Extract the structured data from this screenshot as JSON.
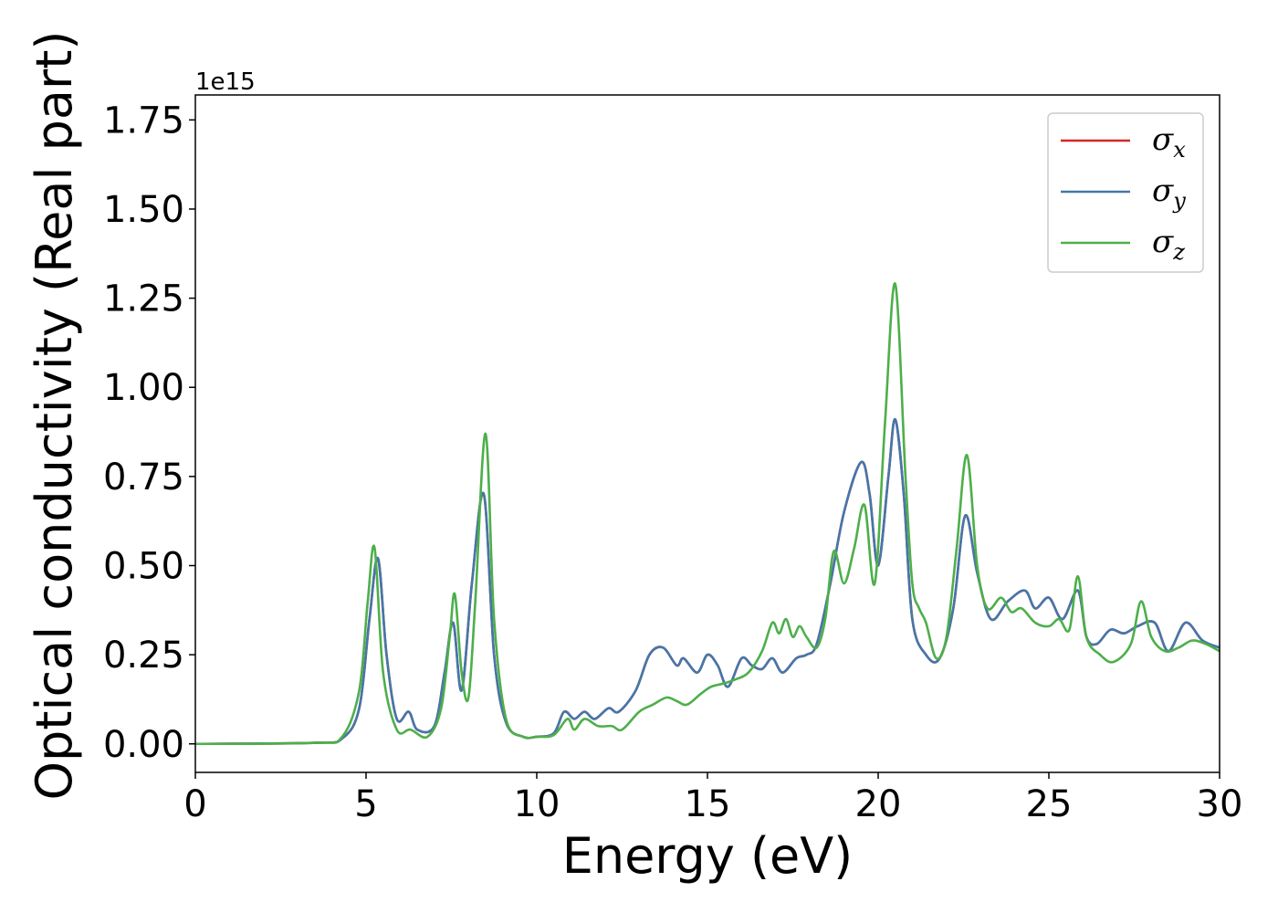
{
  "chart_data": {
    "type": "line",
    "xlabel": "Energy (eV)",
    "ylabel": "Optical conductivity (Real part)",
    "y_offset_label": "1e15",
    "xlim": [
      0,
      30
    ],
    "ylim": [
      -0.08,
      1.82
    ],
    "x_ticks": [
      0,
      5,
      10,
      15,
      20,
      25,
      30
    ],
    "x_tick_labels": [
      "0",
      "5",
      "10",
      "15",
      "20",
      "25",
      "30"
    ],
    "y_ticks": [
      0,
      0.25,
      0.5,
      0.75,
      1.0,
      1.25,
      1.5,
      1.75
    ],
    "y_tick_labels": [
      "0.00",
      "0.25",
      "0.50",
      "0.75",
      "1.00",
      "1.25",
      "1.50",
      "1.75"
    ],
    "grid": false,
    "legend_position": "top-right",
    "colors": {
      "sigma_x": "#d62728",
      "sigma_y": "#4477aa",
      "sigma_z": "#4daf4a"
    },
    "series": [
      {
        "name": "σx",
        "symbol": "σ",
        "subscript": "x",
        "color": "#d62728",
        "points": [
          [
            0,
            0
          ],
          [
            3.5,
            0.003
          ],
          [
            4.3,
            0.015
          ],
          [
            4.8,
            0.1
          ],
          [
            5.1,
            0.35
          ],
          [
            5.35,
            0.52
          ],
          [
            5.6,
            0.25
          ],
          [
            5.9,
            0.07
          ],
          [
            6.25,
            0.09
          ],
          [
            6.5,
            0.04
          ],
          [
            7.0,
            0.05
          ],
          [
            7.3,
            0.2
          ],
          [
            7.55,
            0.34
          ],
          [
            7.8,
            0.15
          ],
          [
            8.1,
            0.45
          ],
          [
            8.45,
            0.7
          ],
          [
            8.75,
            0.25
          ],
          [
            9.1,
            0.06
          ],
          [
            9.6,
            0.02
          ],
          [
            10.0,
            0.02
          ],
          [
            10.5,
            0.03
          ],
          [
            10.8,
            0.09
          ],
          [
            11.1,
            0.07
          ],
          [
            11.4,
            0.09
          ],
          [
            11.7,
            0.07
          ],
          [
            12.1,
            0.1
          ],
          [
            12.4,
            0.09
          ],
          [
            12.9,
            0.15
          ],
          [
            13.3,
            0.25
          ],
          [
            13.7,
            0.27
          ],
          [
            14.1,
            0.22
          ],
          [
            14.3,
            0.24
          ],
          [
            14.7,
            0.2
          ],
          [
            15.0,
            0.25
          ],
          [
            15.3,
            0.22
          ],
          [
            15.6,
            0.16
          ],
          [
            16.0,
            0.24
          ],
          [
            16.3,
            0.22
          ],
          [
            16.6,
            0.21
          ],
          [
            16.9,
            0.24
          ],
          [
            17.2,
            0.2
          ],
          [
            17.6,
            0.24
          ],
          [
            17.9,
            0.25
          ],
          [
            18.2,
            0.28
          ],
          [
            18.6,
            0.45
          ],
          [
            19.0,
            0.65
          ],
          [
            19.5,
            0.79
          ],
          [
            19.75,
            0.7
          ],
          [
            20.0,
            0.5
          ],
          [
            20.3,
            0.75
          ],
          [
            20.5,
            0.91
          ],
          [
            20.75,
            0.7
          ],
          [
            21.0,
            0.35
          ],
          [
            21.4,
            0.25
          ],
          [
            21.8,
            0.24
          ],
          [
            22.2,
            0.38
          ],
          [
            22.55,
            0.64
          ],
          [
            22.9,
            0.48
          ],
          [
            23.3,
            0.35
          ],
          [
            23.8,
            0.4
          ],
          [
            24.3,
            0.43
          ],
          [
            24.6,
            0.38
          ],
          [
            25.0,
            0.41
          ],
          [
            25.4,
            0.35
          ],
          [
            25.85,
            0.43
          ],
          [
            26.1,
            0.3
          ],
          [
            26.4,
            0.28
          ],
          [
            26.8,
            0.32
          ],
          [
            27.2,
            0.31
          ],
          [
            27.6,
            0.33
          ],
          [
            28.1,
            0.34
          ],
          [
            28.5,
            0.26
          ],
          [
            29.0,
            0.34
          ],
          [
            29.5,
            0.29
          ],
          [
            30.0,
            0.27
          ]
        ]
      },
      {
        "name": "σy",
        "symbol": "σ",
        "subscript": "y",
        "color": "#4477aa",
        "points": [
          [
            0,
            0
          ],
          [
            3.5,
            0.003
          ],
          [
            4.3,
            0.015
          ],
          [
            4.8,
            0.1
          ],
          [
            5.1,
            0.35
          ],
          [
            5.35,
            0.52
          ],
          [
            5.6,
            0.25
          ],
          [
            5.9,
            0.07
          ],
          [
            6.25,
            0.09
          ],
          [
            6.5,
            0.04
          ],
          [
            7.0,
            0.05
          ],
          [
            7.3,
            0.2
          ],
          [
            7.55,
            0.34
          ],
          [
            7.8,
            0.15
          ],
          [
            8.1,
            0.45
          ],
          [
            8.45,
            0.7
          ],
          [
            8.75,
            0.25
          ],
          [
            9.1,
            0.06
          ],
          [
            9.6,
            0.02
          ],
          [
            10.0,
            0.02
          ],
          [
            10.5,
            0.03
          ],
          [
            10.8,
            0.09
          ],
          [
            11.1,
            0.07
          ],
          [
            11.4,
            0.09
          ],
          [
            11.7,
            0.07
          ],
          [
            12.1,
            0.1
          ],
          [
            12.4,
            0.09
          ],
          [
            12.9,
            0.15
          ],
          [
            13.3,
            0.25
          ],
          [
            13.7,
            0.27
          ],
          [
            14.1,
            0.22
          ],
          [
            14.3,
            0.24
          ],
          [
            14.7,
            0.2
          ],
          [
            15.0,
            0.25
          ],
          [
            15.3,
            0.22
          ],
          [
            15.6,
            0.16
          ],
          [
            16.0,
            0.24
          ],
          [
            16.3,
            0.22
          ],
          [
            16.6,
            0.21
          ],
          [
            16.9,
            0.24
          ],
          [
            17.2,
            0.2
          ],
          [
            17.6,
            0.24
          ],
          [
            17.9,
            0.25
          ],
          [
            18.2,
            0.28
          ],
          [
            18.6,
            0.45
          ],
          [
            19.0,
            0.65
          ],
          [
            19.5,
            0.79
          ],
          [
            19.75,
            0.7
          ],
          [
            20.0,
            0.5
          ],
          [
            20.3,
            0.75
          ],
          [
            20.5,
            0.91
          ],
          [
            20.75,
            0.7
          ],
          [
            21.0,
            0.35
          ],
          [
            21.4,
            0.25
          ],
          [
            21.8,
            0.24
          ],
          [
            22.2,
            0.38
          ],
          [
            22.55,
            0.64
          ],
          [
            22.9,
            0.48
          ],
          [
            23.3,
            0.35
          ],
          [
            23.8,
            0.4
          ],
          [
            24.3,
            0.43
          ],
          [
            24.6,
            0.38
          ],
          [
            25.0,
            0.41
          ],
          [
            25.4,
            0.35
          ],
          [
            25.85,
            0.43
          ],
          [
            26.1,
            0.3
          ],
          [
            26.4,
            0.28
          ],
          [
            26.8,
            0.32
          ],
          [
            27.2,
            0.31
          ],
          [
            27.6,
            0.33
          ],
          [
            28.1,
            0.34
          ],
          [
            28.5,
            0.26
          ],
          [
            29.0,
            0.34
          ],
          [
            29.5,
            0.29
          ],
          [
            30.0,
            0.27
          ]
        ]
      },
      {
        "name": "σz",
        "symbol": "σ",
        "subscript": "z",
        "color": "#4daf4a",
        "points": [
          [
            0,
            0
          ],
          [
            3.5,
            0.003
          ],
          [
            4.3,
            0.02
          ],
          [
            4.8,
            0.15
          ],
          [
            5.05,
            0.4
          ],
          [
            5.25,
            0.55
          ],
          [
            5.5,
            0.2
          ],
          [
            5.9,
            0.04
          ],
          [
            6.3,
            0.04
          ],
          [
            6.8,
            0.02
          ],
          [
            7.2,
            0.1
          ],
          [
            7.45,
            0.3
          ],
          [
            7.6,
            0.42
          ],
          [
            7.8,
            0.2
          ],
          [
            8.0,
            0.13
          ],
          [
            8.2,
            0.4
          ],
          [
            8.5,
            0.87
          ],
          [
            8.75,
            0.35
          ],
          [
            9.1,
            0.07
          ],
          [
            9.6,
            0.02
          ],
          [
            10.0,
            0.02
          ],
          [
            10.5,
            0.025
          ],
          [
            10.9,
            0.07
          ],
          [
            11.1,
            0.04
          ],
          [
            11.4,
            0.07
          ],
          [
            11.8,
            0.05
          ],
          [
            12.2,
            0.05
          ],
          [
            12.5,
            0.04
          ],
          [
            13.0,
            0.09
          ],
          [
            13.4,
            0.11
          ],
          [
            13.8,
            0.13
          ],
          [
            14.1,
            0.12
          ],
          [
            14.4,
            0.11
          ],
          [
            14.8,
            0.14
          ],
          [
            15.1,
            0.16
          ],
          [
            15.5,
            0.17
          ],
          [
            15.8,
            0.18
          ],
          [
            16.2,
            0.2
          ],
          [
            16.6,
            0.26
          ],
          [
            16.9,
            0.34
          ],
          [
            17.1,
            0.31
          ],
          [
            17.3,
            0.35
          ],
          [
            17.5,
            0.3
          ],
          [
            17.7,
            0.33
          ],
          [
            17.9,
            0.3
          ],
          [
            18.2,
            0.27
          ],
          [
            18.45,
            0.35
          ],
          [
            18.7,
            0.54
          ],
          [
            19.0,
            0.45
          ],
          [
            19.3,
            0.55
          ],
          [
            19.6,
            0.67
          ],
          [
            19.9,
            0.45
          ],
          [
            20.2,
            0.9
          ],
          [
            20.5,
            1.29
          ],
          [
            20.8,
            0.75
          ],
          [
            21.0,
            0.45
          ],
          [
            21.2,
            0.38
          ],
          [
            21.4,
            0.34
          ],
          [
            21.7,
            0.24
          ],
          [
            22.0,
            0.3
          ],
          [
            22.3,
            0.55
          ],
          [
            22.6,
            0.81
          ],
          [
            22.9,
            0.5
          ],
          [
            23.2,
            0.38
          ],
          [
            23.6,
            0.41
          ],
          [
            23.9,
            0.37
          ],
          [
            24.2,
            0.38
          ],
          [
            24.6,
            0.34
          ],
          [
            25.0,
            0.33
          ],
          [
            25.3,
            0.35
          ],
          [
            25.6,
            0.32
          ],
          [
            25.85,
            0.47
          ],
          [
            26.1,
            0.3
          ],
          [
            26.5,
            0.25
          ],
          [
            26.9,
            0.23
          ],
          [
            27.4,
            0.28
          ],
          [
            27.7,
            0.4
          ],
          [
            28.0,
            0.3
          ],
          [
            28.4,
            0.26
          ],
          [
            28.8,
            0.27
          ],
          [
            29.2,
            0.29
          ],
          [
            29.6,
            0.28
          ],
          [
            30.0,
            0.26
          ]
        ]
      }
    ]
  }
}
